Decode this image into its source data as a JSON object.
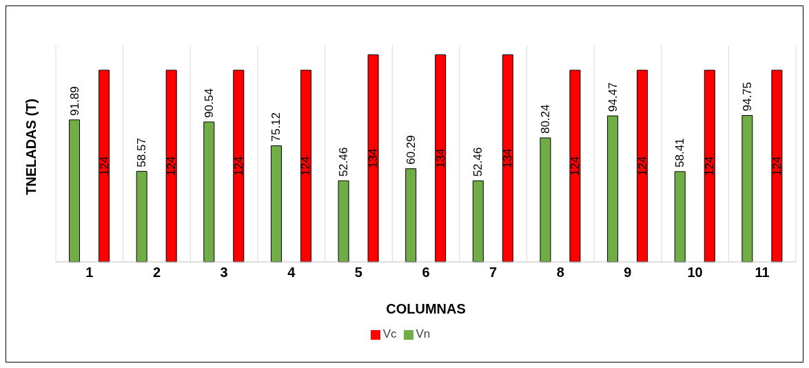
{
  "chart_data": {
    "type": "bar",
    "xlabel": "COLUMNAS",
    "ylabel": "TNELADAS (T)",
    "categories": [
      "1",
      "2",
      "3",
      "4",
      "5",
      "6",
      "7",
      "8",
      "9",
      "10",
      "11"
    ],
    "series": [
      {
        "name": "Vn",
        "color": "#70ad47",
        "values": [
          91.89,
          58.57,
          90.54,
          75.12,
          52.46,
          60.29,
          52.46,
          80.24,
          94.47,
          58.41,
          94.75
        ]
      },
      {
        "name": "Vc",
        "color": "#ff0000",
        "values": [
          124,
          124,
          124,
          124,
          134,
          134,
          134,
          124,
          124,
          124,
          124
        ]
      }
    ],
    "data_labels": true,
    "grid": "x",
    "legend": "bottom"
  }
}
